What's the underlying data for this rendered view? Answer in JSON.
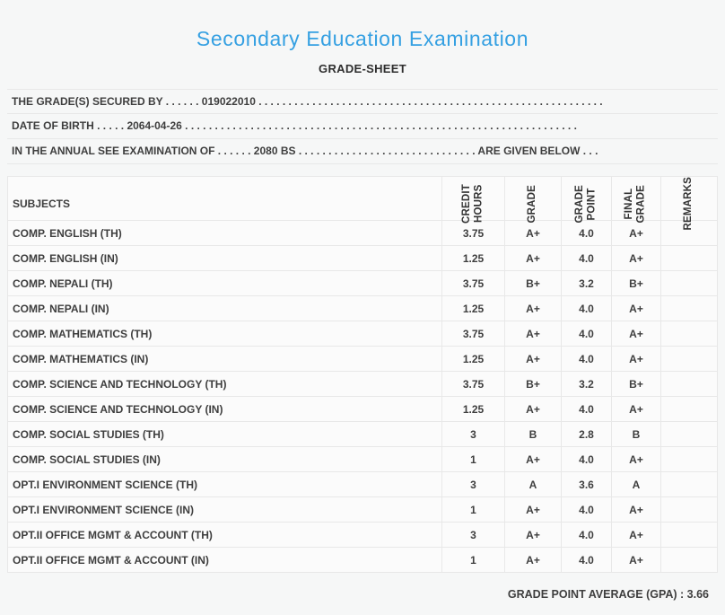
{
  "header": {
    "title": "Secondary Education Examination",
    "subtitle": "GRADE-SHEET"
  },
  "info_lines": [
    {
      "label": "THE GRADE(S) SECURED BY",
      "leader": ". . . . . .",
      "value": "019022010",
      "trailer": ". . . . . . . . . . . . . . . . . . . . . . . . . . . . . . . . . . . . . . . . . . . . . . . . . . . . . . . . . .",
      "suffix": ""
    },
    {
      "label": "DATE OF BIRTH",
      "leader": ". . . . .",
      "value": "2064-04-26",
      "trailer": ". . . . . . . . . . . . . . . . . . . . . . . . . . . . . . . . . . . . . . . . . . . . . . . . . . . . . . . . . . . . . . . . . .",
      "suffix": ""
    },
    {
      "label": "IN THE ANNUAL SEE EXAMINATION OF",
      "leader": ". . . . . .",
      "value": "2080 BS",
      "trailer": ". . . . . . . . . . . . . . . . . . . . . . . . . . . . . .",
      "suffix": "ARE GIVEN BELOW . . ."
    }
  ],
  "table": {
    "subjects_header": "SUBJECTS",
    "columns": [
      [
        "CREDIT",
        "HOURS"
      ],
      [
        "GRADE"
      ],
      [
        "GRADE",
        "POINT"
      ],
      [
        "FINAL",
        "GRADE"
      ],
      [
        "REMARKS"
      ]
    ],
    "rows": [
      {
        "subject": "COMP. ENGLISH (TH)",
        "credit": "3.75",
        "grade": "A+",
        "point": "4.0",
        "final": "A+",
        "remarks": ""
      },
      {
        "subject": "COMP. ENGLISH (IN)",
        "credit": "1.25",
        "grade": "A+",
        "point": "4.0",
        "final": "A+",
        "remarks": ""
      },
      {
        "subject": "COMP. NEPALI (TH)",
        "credit": "3.75",
        "grade": "B+",
        "point": "3.2",
        "final": "B+",
        "remarks": ""
      },
      {
        "subject": "COMP. NEPALI (IN)",
        "credit": "1.25",
        "grade": "A+",
        "point": "4.0",
        "final": "A+",
        "remarks": ""
      },
      {
        "subject": "COMP. MATHEMATICS (TH)",
        "credit": "3.75",
        "grade": "A+",
        "point": "4.0",
        "final": "A+",
        "remarks": ""
      },
      {
        "subject": "COMP. MATHEMATICS (IN)",
        "credit": "1.25",
        "grade": "A+",
        "point": "4.0",
        "final": "A+",
        "remarks": ""
      },
      {
        "subject": "COMP. SCIENCE AND TECHNOLOGY (TH)",
        "credit": "3.75",
        "grade": "B+",
        "point": "3.2",
        "final": "B+",
        "remarks": ""
      },
      {
        "subject": "COMP. SCIENCE AND TECHNOLOGY (IN)",
        "credit": "1.25",
        "grade": "A+",
        "point": "4.0",
        "final": "A+",
        "remarks": ""
      },
      {
        "subject": "COMP. SOCIAL STUDIES (TH)",
        "credit": "3",
        "grade": "B",
        "point": "2.8",
        "final": "B",
        "remarks": ""
      },
      {
        "subject": "COMP. SOCIAL STUDIES (IN)",
        "credit": "1",
        "grade": "A+",
        "point": "4.0",
        "final": "A+",
        "remarks": ""
      },
      {
        "subject": "OPT.I ENVIRONMENT SCIENCE (TH)",
        "credit": "3",
        "grade": "A",
        "point": "3.6",
        "final": "A",
        "remarks": ""
      },
      {
        "subject": "OPT.I ENVIRONMENT SCIENCE (IN)",
        "credit": "1",
        "grade": "A+",
        "point": "4.0",
        "final": "A+",
        "remarks": ""
      },
      {
        "subject": "OPT.II OFFICE MGMT & ACCOUNT (TH)",
        "credit": "3",
        "grade": "A+",
        "point": "4.0",
        "final": "A+",
        "remarks": ""
      },
      {
        "subject": "OPT.II OFFICE MGMT & ACCOUNT (IN)",
        "credit": "1",
        "grade": "A+",
        "point": "4.0",
        "final": "A+",
        "remarks": ""
      }
    ]
  },
  "footer": {
    "gpa_text": "GRADE POINT AVERAGE (GPA) : 3.66"
  },
  "colors": {
    "accent_blue": "#35a0e2",
    "text": "#3e3e3e",
    "border": "#e8e8e8",
    "background": "#f6f7f7"
  }
}
